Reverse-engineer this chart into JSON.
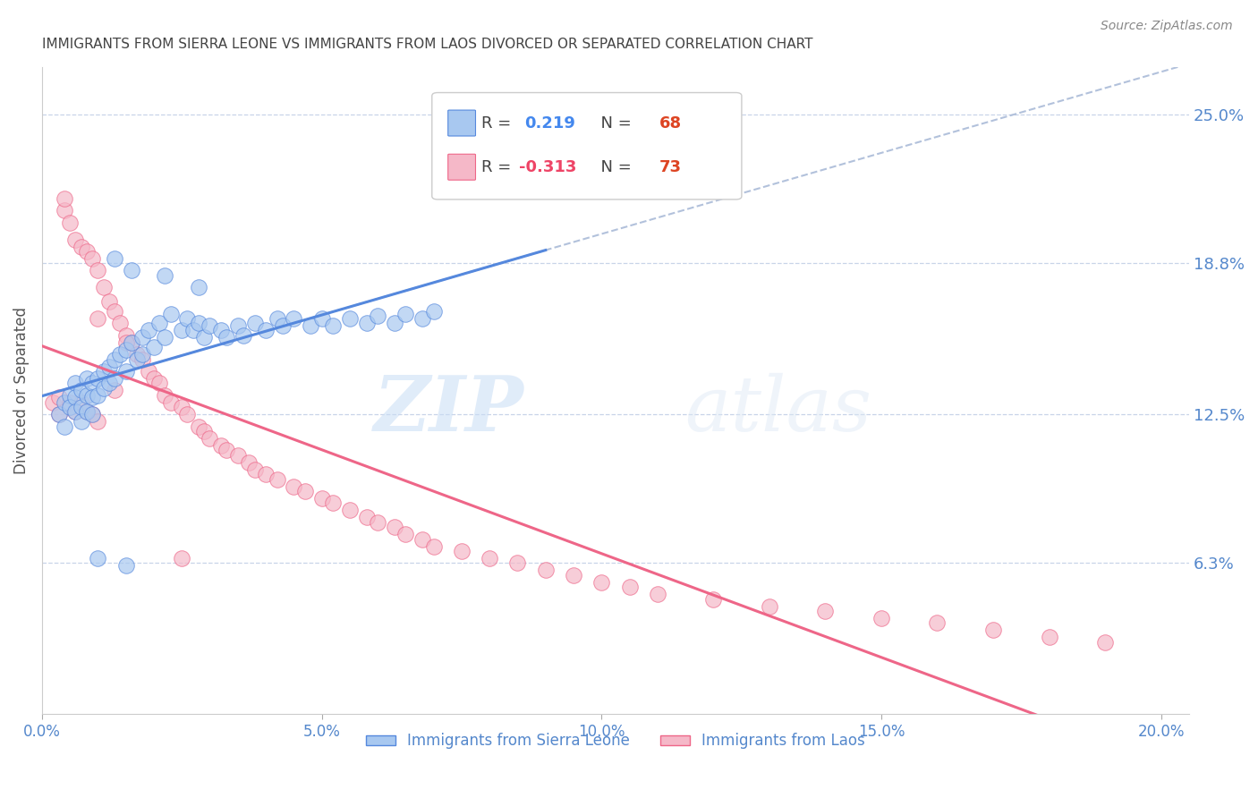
{
  "title": "IMMIGRANTS FROM SIERRA LEONE VS IMMIGRANTS FROM LAOS DIVORCED OR SEPARATED CORRELATION CHART",
  "source": "Source: ZipAtlas.com",
  "xlabel_ticks": [
    "0.0%",
    "5.0%",
    "10.0%",
    "15.0%",
    "20.0%"
  ],
  "xlabel_tick_vals": [
    0.0,
    0.05,
    0.1,
    0.15,
    0.2
  ],
  "ylabel_ticks": [
    "6.3%",
    "12.5%",
    "18.8%",
    "25.0%"
  ],
  "ylabel_tick_vals": [
    0.063,
    0.125,
    0.188,
    0.25
  ],
  "xlim": [
    0.0,
    0.205
  ],
  "ylim": [
    0.0,
    0.27
  ],
  "ylabel": "Divorced or Separated",
  "legend_label1": "Immigrants from Sierra Leone",
  "legend_label2": "Immigrants from Laos",
  "legend_r1": "0.219",
  "legend_n1": "68",
  "legend_r2": "-0.313",
  "legend_n2": "73",
  "color_sierra": "#a8c8f0",
  "color_laos": "#f5b8c8",
  "line_color_sierra": "#5588dd",
  "line_color_laos": "#ee6688",
  "line_color_dashed": "#aabbd8",
  "watermark_zip": "ZIP",
  "watermark_atlas": "atlas",
  "background_color": "#ffffff",
  "grid_color": "#c8d4e8",
  "title_color": "#444444",
  "tick_color": "#5588cc",
  "sierra_leone_x": [
    0.003,
    0.004,
    0.004,
    0.005,
    0.005,
    0.006,
    0.006,
    0.006,
    0.007,
    0.007,
    0.007,
    0.008,
    0.008,
    0.008,
    0.009,
    0.009,
    0.009,
    0.01,
    0.01,
    0.011,
    0.011,
    0.012,
    0.012,
    0.013,
    0.013,
    0.014,
    0.015,
    0.015,
    0.016,
    0.017,
    0.018,
    0.018,
    0.019,
    0.02,
    0.021,
    0.022,
    0.023,
    0.025,
    0.026,
    0.027,
    0.028,
    0.029,
    0.03,
    0.032,
    0.033,
    0.035,
    0.036,
    0.038,
    0.04,
    0.042,
    0.043,
    0.045,
    0.048,
    0.05,
    0.052,
    0.055,
    0.058,
    0.06,
    0.063,
    0.065,
    0.068,
    0.07,
    0.013,
    0.016,
    0.022,
    0.028,
    0.01,
    0.015
  ],
  "sierra_leone_y": [
    0.125,
    0.13,
    0.12,
    0.133,
    0.128,
    0.138,
    0.132,
    0.126,
    0.135,
    0.128,
    0.122,
    0.14,
    0.133,
    0.126,
    0.138,
    0.132,
    0.125,
    0.14,
    0.133,
    0.143,
    0.136,
    0.145,
    0.138,
    0.148,
    0.14,
    0.15,
    0.152,
    0.143,
    0.155,
    0.148,
    0.157,
    0.15,
    0.16,
    0.153,
    0.163,
    0.157,
    0.167,
    0.16,
    0.165,
    0.16,
    0.163,
    0.157,
    0.162,
    0.16,
    0.157,
    0.162,
    0.158,
    0.163,
    0.16,
    0.165,
    0.162,
    0.165,
    0.162,
    0.165,
    0.162,
    0.165,
    0.163,
    0.166,
    0.163,
    0.167,
    0.165,
    0.168,
    0.19,
    0.185,
    0.183,
    0.178,
    0.065,
    0.062
  ],
  "laos_x": [
    0.002,
    0.003,
    0.003,
    0.004,
    0.004,
    0.005,
    0.005,
    0.006,
    0.006,
    0.007,
    0.007,
    0.008,
    0.008,
    0.009,
    0.009,
    0.01,
    0.01,
    0.011,
    0.012,
    0.013,
    0.013,
    0.014,
    0.015,
    0.016,
    0.017,
    0.018,
    0.019,
    0.02,
    0.021,
    0.022,
    0.023,
    0.025,
    0.026,
    0.028,
    0.029,
    0.03,
    0.032,
    0.033,
    0.035,
    0.037,
    0.038,
    0.04,
    0.042,
    0.045,
    0.047,
    0.05,
    0.052,
    0.055,
    0.058,
    0.06,
    0.063,
    0.065,
    0.068,
    0.07,
    0.075,
    0.08,
    0.085,
    0.09,
    0.095,
    0.1,
    0.105,
    0.11,
    0.12,
    0.13,
    0.14,
    0.15,
    0.16,
    0.17,
    0.18,
    0.19,
    0.01,
    0.015,
    0.025
  ],
  "laos_y": [
    0.13,
    0.132,
    0.125,
    0.21,
    0.215,
    0.205,
    0.13,
    0.198,
    0.126,
    0.195,
    0.13,
    0.193,
    0.126,
    0.19,
    0.125,
    0.185,
    0.122,
    0.178,
    0.172,
    0.168,
    0.135,
    0.163,
    0.158,
    0.155,
    0.15,
    0.148,
    0.143,
    0.14,
    0.138,
    0.133,
    0.13,
    0.128,
    0.125,
    0.12,
    0.118,
    0.115,
    0.112,
    0.11,
    0.108,
    0.105,
    0.102,
    0.1,
    0.098,
    0.095,
    0.093,
    0.09,
    0.088,
    0.085,
    0.082,
    0.08,
    0.078,
    0.075,
    0.073,
    0.07,
    0.068,
    0.065,
    0.063,
    0.06,
    0.058,
    0.055,
    0.053,
    0.05,
    0.048,
    0.045,
    0.043,
    0.04,
    0.038,
    0.035,
    0.032,
    0.03,
    0.165,
    0.155,
    0.065
  ]
}
